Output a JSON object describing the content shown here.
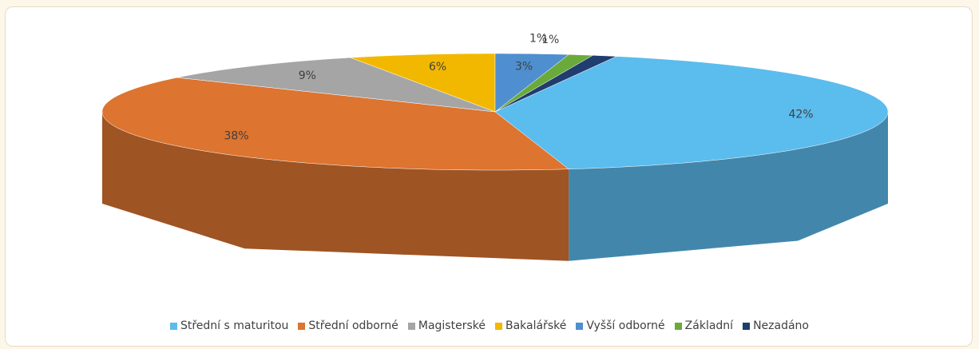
{
  "chart_data": {
    "type": "pie",
    "categories": [
      "Střední s maturitou",
      "Střední odborné",
      "Magisterské",
      "Bakalářské",
      "Vyšší odborné",
      "Základní",
      "Nezadáno"
    ],
    "values": [
      42,
      38,
      9,
      6,
      3,
      1,
      1
    ],
    "value_labels": [
      "42%",
      "38%",
      "9%",
      "6%",
      "3%",
      "1%",
      "1%"
    ],
    "colors": [
      "#5bbcee",
      "#dd7430",
      "#a5a5a5",
      "#f2b800",
      "#4f8fcf",
      "#6aaa3a",
      "#1f3d6e"
    ],
    "legend": "bottom"
  }
}
